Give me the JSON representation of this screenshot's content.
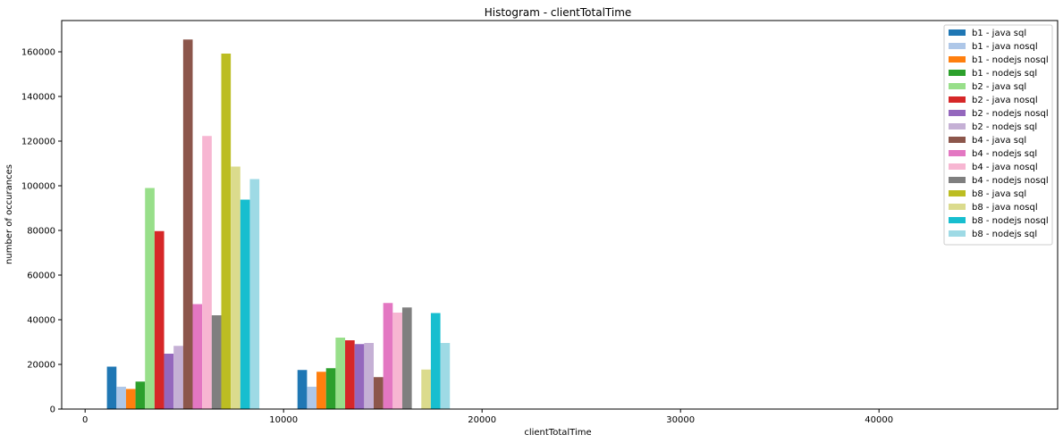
{
  "chart_data": {
    "type": "bar",
    "title": "Histogram - clientTotalTime",
    "xlabel": "clientTotalTime",
    "ylabel": "number of occurances",
    "xlim": [
      -1180,
      49000
    ],
    "ylim": [
      0,
      174000
    ],
    "xticks": [
      0,
      10000,
      20000,
      30000,
      40000
    ],
    "yticks": [
      0,
      20000,
      40000,
      60000,
      80000,
      100000,
      120000,
      140000,
      160000
    ],
    "grid": false,
    "legend_position": "top-right",
    "bin_starts": [
      1100,
      10700
    ],
    "bar_width": 480,
    "series": [
      {
        "name": "b1 - java sql",
        "color": "#1f77b4",
        "values": [
          19000,
          17500
        ]
      },
      {
        "name": "b1 - java nosql",
        "color": "#aec7e8",
        "values": [
          10000,
          10000
        ]
      },
      {
        "name": "b1 - nodejs nosql",
        "color": "#ff7f0e",
        "values": [
          9000,
          16700
        ]
      },
      {
        "name": "b1 - nodejs sql",
        "color": "#2ca02c",
        "values": [
          12300,
          18300
        ]
      },
      {
        "name": "b2 - java sql",
        "color": "#98df8a",
        "values": [
          99000,
          32000
        ]
      },
      {
        "name": "b2 - java nosql",
        "color": "#d62728",
        "values": [
          79700,
          30800
        ]
      },
      {
        "name": "b2 - nodejs nosql",
        "color": "#9467bd",
        "values": [
          24800,
          29100
        ]
      },
      {
        "name": "b2 - nodejs sql",
        "color": "#c5b0d5",
        "values": [
          28300,
          29600
        ]
      },
      {
        "name": "b4 - java sql",
        "color": "#8c564b",
        "values": [
          165500,
          14300
        ]
      },
      {
        "name": "b4 - nodejs sql",
        "color": "#e377c2",
        "values": [
          47000,
          47500
        ]
      },
      {
        "name": "b4 - java nosql",
        "color": "#f7b6d2",
        "values": [
          122300,
          43200
        ]
      },
      {
        "name": "b4 - nodejs nosql",
        "color": "#7f7f7f",
        "values": [
          42000,
          45500
        ]
      },
      {
        "name": "b8 - java sql",
        "color": "#bcbd22",
        "values": [
          159200,
          0
        ]
      },
      {
        "name": "b8 - java nosql",
        "color": "#dbdb8d",
        "values": [
          108600,
          17700
        ]
      },
      {
        "name": "b8 - nodejs nosql",
        "color": "#17becf",
        "values": [
          93800,
          43000
        ]
      },
      {
        "name": "b8 - nodejs sql",
        "color": "#9edae5",
        "values": [
          103000,
          29600
        ]
      }
    ]
  }
}
